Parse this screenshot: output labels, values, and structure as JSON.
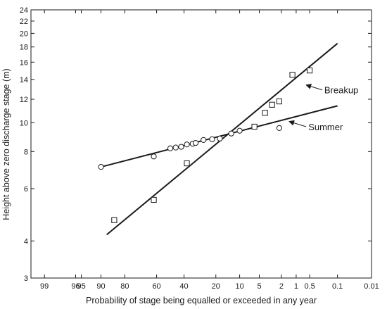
{
  "chart_data": {
    "type": "scatter",
    "title": "",
    "xlabel": "Probability of stage being equalled or exceeded in any year",
    "ylabel": "Height above zero discharge stage (m)",
    "x_scale": "normal-probability (percent exceedance, reversed)",
    "y_scale": "log",
    "xlim": [
      99.5,
      0.01
    ],
    "ylim": [
      3,
      24
    ],
    "x_ticks": [
      99,
      96,
      95,
      90,
      80,
      60,
      40,
      20,
      10,
      5,
      2,
      1,
      0.5,
      0.1,
      0.01
    ],
    "x_tick_labels": [
      "99",
      "96",
      "95",
      "90",
      "80",
      "60",
      "40",
      "20",
      "10",
      "5",
      "2",
      "1",
      "0.5",
      "0.1",
      "0.01"
    ],
    "y_ticks": [
      3,
      4,
      6,
      8,
      10,
      12,
      14,
      16,
      18,
      20,
      22,
      24
    ],
    "y_tick_labels": [
      "3",
      "4",
      "6",
      "8",
      "10",
      "12",
      "14",
      "16",
      "18",
      "20",
      "22",
      "24"
    ],
    "grid": false,
    "series": [
      {
        "name": "Summer",
        "marker": "circle",
        "points": [
          {
            "x": 90,
            "y": 7.1
          },
          {
            "x": 62,
            "y": 7.7
          },
          {
            "x": 50,
            "y": 8.2
          },
          {
            "x": 46,
            "y": 8.25
          },
          {
            "x": 42,
            "y": 8.3
          },
          {
            "x": 38,
            "y": 8.45
          },
          {
            "x": 34,
            "y": 8.5
          },
          {
            "x": 32,
            "y": 8.55
          },
          {
            "x": 27,
            "y": 8.75
          },
          {
            "x": 22,
            "y": 8.8
          },
          {
            "x": 18,
            "y": 8.85
          },
          {
            "x": 13,
            "y": 9.2
          },
          {
            "x": 10,
            "y": 9.4
          },
          {
            "x": 2.2,
            "y": 9.6
          }
        ],
        "fit": [
          {
            "x": 90,
            "y": 7.1
          },
          {
            "x": 0.1,
            "y": 11.4
          }
        ]
      },
      {
        "name": "Breakup",
        "marker": "square",
        "points": [
          {
            "x": 85,
            "y": 4.7
          },
          {
            "x": 62,
            "y": 5.5
          },
          {
            "x": 38,
            "y": 7.3
          },
          {
            "x": 6,
            "y": 9.7
          },
          {
            "x": 4,
            "y": 10.8
          },
          {
            "x": 3,
            "y": 11.5
          },
          {
            "x": 2.2,
            "y": 11.8
          },
          {
            "x": 1.2,
            "y": 14.5
          },
          {
            "x": 0.5,
            "y": 15
          }
        ],
        "fit": [
          {
            "x": 88,
            "y": 4.2
          },
          {
            "x": 0.1,
            "y": 18.5
          }
        ]
      }
    ],
    "annotations": [
      {
        "text": "Breakup",
        "arrow_to": {
          "x": 0.6,
          "y": 13.4
        },
        "from": {
          "x": 0.25,
          "y": 12.9
        }
      },
      {
        "text": "Summer",
        "arrow_to": {
          "x": 1.4,
          "y": 10.1
        },
        "from": {
          "x": 0.6,
          "y": 9.7
        }
      }
    ]
  }
}
